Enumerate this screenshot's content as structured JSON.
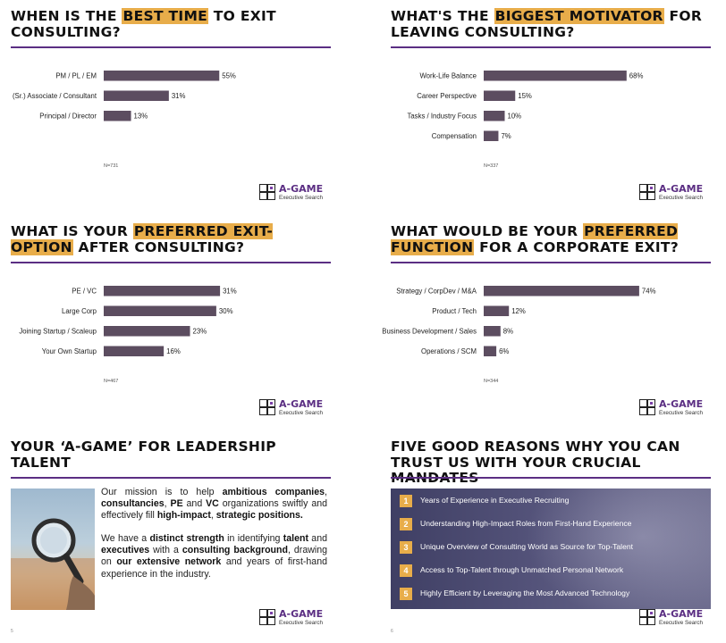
{
  "brand": {
    "name": "A-GAME",
    "tagline": "Executive Search",
    "accent": "#5b2e83",
    "highlight": "#e8ad4a",
    "bar_color": "#5c4d60"
  },
  "panels": [
    {
      "title_pre": "WHEN IS THE ",
      "title_hl": "BEST TIME",
      "title_post": " TO EXIT CONSULTING?",
      "n": "N=731"
    },
    {
      "title_pre": "WHAT'S THE ",
      "title_hl": "BIGGEST MOTIVATOR",
      "title_post": " FOR LEAVING CONSULTING?",
      "n": "N=337"
    },
    {
      "title_pre": "WHAT IS YOUR ",
      "title_hl": "PREFERRED EXIT-OPTION",
      "title_post": " AFTER CONSULTING?",
      "n": "N=467"
    },
    {
      "title_pre": "WHAT WOULD BE YOUR ",
      "title_hl": "PREFERRED FUNCTION",
      "title_post": " FOR A CORPORATE EXIT?",
      "n": "N=344"
    }
  ],
  "chart_data": [
    {
      "type": "bar",
      "orientation": "horizontal",
      "categories": [
        "PM / PL / EM",
        "(Sr.) Associate / Consultant",
        "Principal / Director"
      ],
      "values": [
        55,
        31,
        13
      ],
      "value_labels": [
        "55%",
        "31%",
        "13%"
      ],
      "xlim": [
        0,
        100
      ]
    },
    {
      "type": "bar",
      "orientation": "horizontal",
      "categories": [
        "Work-Life Balance",
        "Career Perspective",
        "Tasks / Industry Focus",
        "Compensation"
      ],
      "values": [
        68,
        15,
        10,
        7
      ],
      "value_labels": [
        "68%",
        "15%",
        "10%",
        "7%"
      ],
      "xlim": [
        0,
        100
      ]
    },
    {
      "type": "bar",
      "orientation": "horizontal",
      "categories": [
        "PE / VC",
        "Large Corp",
        "Joining Startup / Scaleup",
        "Your Own Startup"
      ],
      "values": [
        31,
        30,
        23,
        16
      ],
      "value_labels": [
        "31%",
        "30%",
        "23%",
        "16%"
      ],
      "xlim": [
        0,
        56
      ]
    },
    {
      "type": "bar",
      "orientation": "horizontal",
      "categories": [
        "Strategy / CorpDev / M&A",
        "Product / Tech",
        "Business Development / Sales",
        "Operations / SCM"
      ],
      "values": [
        74,
        12,
        8,
        6
      ],
      "value_labels": [
        "74%",
        "12%",
        "8%",
        "6%"
      ],
      "xlim": [
        0,
        100
      ]
    }
  ],
  "mission": {
    "title": "YOUR ‘A-GAME’ FOR LEADERSHIP TALENT",
    "p1": [
      {
        "t": "Our mission is to help ",
        "b": false
      },
      {
        "t": "ambitious companies",
        "b": true
      },
      {
        "t": ", ",
        "b": false
      },
      {
        "t": "consultancies",
        "b": true
      },
      {
        "t": ", ",
        "b": false
      },
      {
        "t": "PE",
        "b": true
      },
      {
        "t": " and ",
        "b": false
      },
      {
        "t": "VC",
        "b": true
      },
      {
        "t": " organizations swiftly and effectively fill ",
        "b": false
      },
      {
        "t": "high-impact",
        "b": true
      },
      {
        "t": ", ",
        "b": false
      },
      {
        "t": "strategic positions.",
        "b": true
      }
    ],
    "p2": [
      {
        "t": "We have a ",
        "b": false
      },
      {
        "t": "distinct strength",
        "b": true
      },
      {
        "t": " in identifying ",
        "b": false
      },
      {
        "t": "talent",
        "b": true
      },
      {
        "t": " and ",
        "b": false
      },
      {
        "t": "executives",
        "b": true
      },
      {
        "t": " with a ",
        "b": false
      },
      {
        "t": "consulting background",
        "b": true
      },
      {
        "t": ", drawing on ",
        "b": false
      },
      {
        "t": "our extensive network",
        "b": true
      },
      {
        "t": " and years of first-hand experience in the industry.",
        "b": false
      }
    ],
    "page": "5"
  },
  "reasons": {
    "title": "FIVE GOOD REASONS WHY YOU CAN TRUST US WITH YOUR CRUCIAL MANDATES",
    "items": [
      {
        "num": "1",
        "text": "Years of Experience in Executive Recruiting"
      },
      {
        "num": "2",
        "text": "Understanding High-Impact Roles from First-Hand Experience"
      },
      {
        "num": "3",
        "text": "Unique Overview of Consulting World as Source for Top-Talent"
      },
      {
        "num": "4",
        "text": "Access to Top-Talent through Unmatched Personal Network"
      },
      {
        "num": "5",
        "text": "Highly Efficient by Leveraging the Most Advanced Technology"
      }
    ],
    "page": "6"
  }
}
